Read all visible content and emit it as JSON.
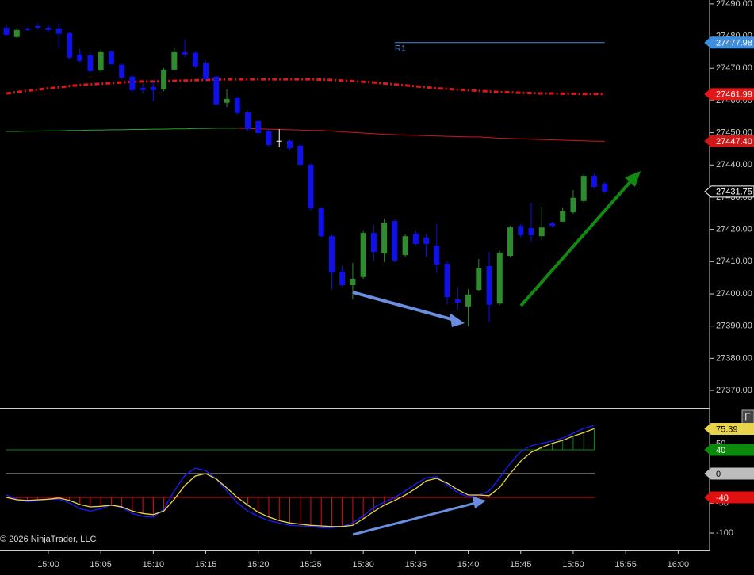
{
  "chart_data": [
    {
      "type": "candlestick",
      "x": [
        "14:56",
        "14:57",
        "14:58",
        "14:59",
        "15:00",
        "15:01",
        "15:02",
        "15:03",
        "15:04",
        "15:05",
        "15:06",
        "15:07",
        "15:08",
        "15:09",
        "15:10",
        "15:11",
        "15:12",
        "15:13",
        "15:14",
        "15:15",
        "15:16",
        "15:17",
        "15:18",
        "15:19",
        "15:20",
        "15:21",
        "15:22",
        "15:23",
        "15:24",
        "15:25",
        "15:26",
        "15:27",
        "15:28",
        "15:29",
        "15:30",
        "15:31",
        "15:32",
        "15:33",
        "15:34",
        "15:35",
        "15:36",
        "15:37",
        "15:38",
        "15:39",
        "15:40",
        "15:41",
        "15:42",
        "15:43",
        "15:44",
        "15:45",
        "15:46",
        "15:47",
        "15:48",
        "15:49",
        "15:50",
        "15:51",
        "15:52",
        "15:53"
      ],
      "open": [
        27482.6,
        27479.7,
        27482.4,
        27483.1,
        27482.6,
        27482.4,
        27480.9,
        27474.3,
        27474.0,
        27469.3,
        27475.2,
        27471.1,
        27467.4,
        27463.9,
        27464.2,
        27463.4,
        27469.6,
        27475.0,
        27474.8,
        27471.6,
        27467.4,
        27459.3,
        27460.7,
        27456.3,
        27453.6,
        27450.6,
        27447.5,
        27447.5,
        27446.0,
        27440.1,
        27426.6,
        27417.9,
        27406.9,
        27402.7,
        27405.2,
        27418.9,
        27412.5,
        27422.6,
        27412.0,
        27418.7,
        27417.5,
        27415.0,
        27409.3,
        27398.3,
        27396.1,
        27401.2,
        27408.6,
        27397.0,
        27411.8,
        27421.1,
        27420.4,
        27417.9,
        27421.9,
        27422.4,
        27425.3,
        27428.8,
        27436.6,
        27434.2
      ],
      "high": [
        27483.4,
        27482.6,
        27482.6,
        27483.9,
        27483.6,
        27483.9,
        27481.4,
        27476.0,
        27475.0,
        27475.7,
        27475.5,
        27471.6,
        27467.9,
        27465.4,
        27465.9,
        27470.1,
        27476.5,
        27478.9,
        27475.5,
        27472.3,
        27467.6,
        27463.7,
        27461.2,
        27456.8,
        27453.8,
        27451.1,
        27451.1,
        27447.9,
        27446.5,
        27440.6,
        27426.8,
        27418.4,
        27408.8,
        27409.6,
        27419.4,
        27421.4,
        27423.3,
        27423.1,
        27418.4,
        27419.4,
        27418.7,
        27421.6,
        27410.1,
        27402.2,
        27401.5,
        27410.8,
        27413.0,
        27413.3,
        27421.1,
        27421.6,
        27428.3,
        27427.1,
        27422.4,
        27426.8,
        27432.2,
        27437.1,
        27437.4,
        27434.7
      ],
      "low": [
        27479.9,
        27479.4,
        27481.6,
        27482.1,
        27481.4,
        27476.0,
        27472.8,
        27471.8,
        27468.6,
        27468.9,
        27471.1,
        27466.6,
        27462.5,
        27462.2,
        27459.7,
        27462.9,
        27469.1,
        27473.5,
        27470.1,
        27466.1,
        27458.3,
        27458.0,
        27455.6,
        27450.6,
        27448.9,
        27445.7,
        27445.5,
        27444.5,
        27439.6,
        27425.8,
        27417.5,
        27401.2,
        27402.2,
        27398.3,
        27404.7,
        27410.1,
        27409.8,
        27409.8,
        27411.6,
        27415.0,
        27411.3,
        27406.4,
        27396.6,
        27394.8,
        27389.9,
        27400.7,
        27391.4,
        27396.6,
        27411.3,
        27417.5,
        27416.2,
        27416.7,
        27420.7,
        27422.6,
        27424.8,
        27428.3,
        27432.7,
        27431.2
      ],
      "close": [
        27480.4,
        27481.9,
        27481.9,
        27482.6,
        27481.9,
        27480.7,
        27473.3,
        27472.3,
        27469.1,
        27475.0,
        27471.3,
        27467.1,
        27463.2,
        27463.2,
        27463.2,
        27469.6,
        27475.0,
        27474.3,
        27470.6,
        27466.6,
        27458.8,
        27460.5,
        27456.1,
        27451.1,
        27449.9,
        27446.2,
        27447.5,
        27445.2,
        27440.1,
        27426.6,
        27417.9,
        27406.6,
        27402.7,
        27404.7,
        27418.9,
        27413.0,
        27422.1,
        27410.3,
        27417.9,
        27415.5,
        27415.5,
        27409.1,
        27399.0,
        27397.3,
        27399.8,
        27408.1,
        27396.6,
        27412.8,
        27420.6,
        27418.2,
        27418.2,
        27420.6,
        27421.1,
        27425.6,
        27429.8,
        27436.6,
        27433.2,
        27431.75
      ],
      "up_color": "#2e8b2e",
      "down_color": "#1010e8",
      "flat_color": "#ffffff",
      "overlays": [
        {
          "color": "#e01818",
          "dash": true,
          "values": [
            27462.2,
            27462.6,
            27463.0,
            27463.4,
            27463.8,
            27464.1,
            27464.5,
            27464.8,
            27465.0,
            27465.2,
            27465.4,
            27465.6,
            27465.8,
            27465.9,
            27465.9,
            27466.0,
            27466.1,
            27466.2,
            27466.3,
            27466.4,
            27466.5,
            27466.6,
            27466.6,
            27466.6,
            27466.6,
            27466.6,
            27466.6,
            27466.6,
            27466.6,
            27466.6,
            27466.5,
            27466.4,
            27466.2,
            27466.0,
            27465.8,
            27465.6,
            27465.3,
            27465.0,
            27464.7,
            27464.4,
            27464.1,
            27463.8,
            27463.6,
            27463.4,
            27463.2,
            27463.0,
            27462.8,
            27462.6,
            27462.5,
            27462.4,
            27462.3,
            27462.2,
            27462.2,
            27462.1,
            27462.1,
            27462.0,
            27462.0,
            27461.99
          ]
        },
        {
          "color": "#2fa02f",
          "dash": false,
          "values": [
            27450.4,
            27450.4,
            27450.5,
            27450.5,
            27450.6,
            27450.6,
            27450.7,
            27450.7,
            27450.8,
            27450.8,
            27450.9,
            27450.9,
            27451.0,
            27451.0,
            27451.1,
            27451.1,
            27451.2,
            27451.2,
            27451.3,
            27451.3,
            27451.4,
            27451.4,
            27451.4,
            null,
            null,
            null,
            null,
            null,
            null,
            null,
            null,
            null,
            null,
            null,
            null,
            null,
            null,
            null,
            null,
            null,
            null,
            null,
            null,
            null,
            null,
            null,
            null,
            null,
            null,
            null,
            null,
            null,
            null,
            null,
            null,
            null,
            null,
            null
          ]
        },
        {
          "color": "#d01818",
          "dash": false,
          "values": [
            null,
            null,
            null,
            null,
            null,
            null,
            null,
            null,
            null,
            null,
            null,
            null,
            null,
            null,
            null,
            null,
            null,
            null,
            null,
            null,
            null,
            null,
            27451.4,
            27451.3,
            27451.2,
            27451.1,
            27451.0,
            27450.9,
            27450.8,
            27450.7,
            27450.7,
            27450.5,
            27450.3,
            27450.1,
            27449.9,
            27449.7,
            27449.5,
            27449.4,
            27449.3,
            27449.2,
            27449.1,
            27449.0,
            27448.9,
            27448.8,
            27448.7,
            27448.7,
            27448.5,
            27448.3,
            27448.2,
            27448.1,
            27448.0,
            27447.9,
            27447.8,
            27447.7,
            27447.6,
            27447.5,
            27447.4,
            27447.4
          ],
          "value_labels": [
            null,
            null,
            null,
            null,
            null,
            null,
            null,
            null,
            null,
            null,
            null,
            null,
            null,
            null,
            null,
            null,
            null,
            null,
            null,
            null,
            null,
            null,
            null,
            null,
            null,
            null,
            null,
            null,
            null,
            null,
            null,
            null,
            null,
            null,
            null,
            null,
            null,
            null,
            null,
            null,
            null,
            null,
            null,
            null,
            null,
            null,
            null,
            null,
            null,
            null,
            null,
            null,
            null,
            null,
            null,
            null,
            null,
            "27447.40"
          ]
        }
      ],
      "r1": {
        "name": "R1",
        "value": 27477.98,
        "from": "15:33",
        "to": "15:53",
        "color": "#3f8fe0"
      },
      "ylim": [
        27364.6,
        27491.2
      ],
      "yticks": [
        {
          "value": 27370,
          "label": "27370.00"
        },
        {
          "value": 27380,
          "label": "27380.00"
        },
        {
          "value": 27390,
          "label": "27390.00"
        },
        {
          "value": 27400,
          "label": "27400.00"
        },
        {
          "value": 27410,
          "label": "27410.00"
        },
        {
          "value": 27420,
          "label": "27420.00"
        },
        {
          "value": 27430,
          "label": "27430.00"
        },
        {
          "value": 27440,
          "label": "27440.00"
        },
        {
          "value": 27450,
          "label": "27450.00"
        },
        {
          "value": 27460,
          "label": "27460.00"
        },
        {
          "value": 27470,
          "label": "27470.00"
        },
        {
          "value": 27480,
          "label": "27480.00"
        },
        {
          "value": 27490,
          "label": "27490.00"
        }
      ]
    },
    {
      "type": "line",
      "series": [
        {
          "color": "#1a1aff",
          "values": [
            -36,
            -43,
            -47,
            -45,
            -43,
            -43,
            -49,
            -59,
            -63,
            -59,
            -53,
            -57,
            -67,
            -72,
            -73,
            -60,
            -29,
            -3,
            9,
            5,
            -9,
            -29,
            -49,
            -63,
            -72,
            -79,
            -83,
            -87,
            -88,
            -89,
            -91,
            -91,
            -89,
            -83,
            -71,
            -57,
            -48,
            -40,
            -29,
            -17,
            -7,
            -5,
            -19,
            -32,
            -39,
            -36,
            -29,
            -7,
            17,
            37,
            47,
            51,
            55,
            60,
            68,
            76,
            81,
            null
          ]
        },
        {
          "color": "#e8d44a",
          "values": [
            -40,
            -44,
            -45,
            -44,
            -43,
            -41,
            -45,
            -52,
            -56,
            -55,
            -53,
            -56,
            -63,
            -67,
            -69,
            -63,
            -43,
            -20,
            -4,
            0,
            -9,
            -24,
            -40,
            -53,
            -65,
            -73,
            -79,
            -83,
            -85,
            -87,
            -88,
            -89,
            -89,
            -87,
            -76,
            -64,
            -53,
            -45,
            -36,
            -25,
            -12,
            -8,
            -16,
            -27,
            -36,
            -36,
            -37,
            -23,
            0,
            21,
            36,
            44,
            51,
            56,
            63,
            69,
            75.39,
            null
          ]
        }
      ],
      "levels": [
        {
          "value": 40,
          "color": "#0b8a0b"
        },
        {
          "value": 0,
          "color": "#bdbdbd"
        },
        {
          "value": -40,
          "color": "#e01010"
        }
      ],
      "ylim": [
        -129.3,
        109.3
      ],
      "yticks": [
        50,
        -50,
        -100
      ],
      "xticks": [
        "15:00",
        "15:05",
        "15:10",
        "15:15",
        "15:20",
        "15:25",
        "15:30",
        "15:35",
        "15:40",
        "15:45",
        "15:50",
        "15:55",
        "16:00"
      ]
    }
  ],
  "copyright": "© 2026 NinjaTrader, LLC",
  "button": "F"
}
